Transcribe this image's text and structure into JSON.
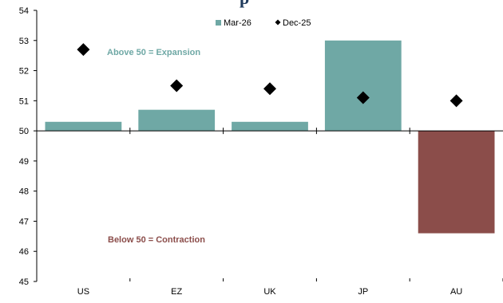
{
  "chart_data": {
    "type": "bar",
    "title_fragment": "p",
    "categories": [
      "US",
      "EZ",
      "UK",
      "JP",
      "AU"
    ],
    "baseline": 50,
    "ylim": [
      45,
      54
    ],
    "yticks": [
      45,
      46,
      47,
      48,
      49,
      50,
      51,
      52,
      53,
      54
    ],
    "grid": false,
    "legend_position": "top-right",
    "series": [
      {
        "name": "Mar-26",
        "kind": "bar",
        "values": [
          50.3,
          50.7,
          50.3,
          53.0,
          46.6
        ]
      },
      {
        "name": "Dec-25",
        "kind": "diamond",
        "values": [
          52.7,
          51.5,
          51.4,
          51.1,
          51.0
        ]
      }
    ],
    "annotations": [
      {
        "text": "Above 50 = Expansion"
      },
      {
        "text": "Below 50 = Contraction"
      }
    ],
    "colors": {
      "bar_positive": "#6fa8a5",
      "bar_negative": "#8b4d4a",
      "marker": "#000000",
      "annot_positive": "#6fa8a5",
      "annot_negative": "#8b4d4a",
      "title": "#1f3a5c"
    }
  }
}
